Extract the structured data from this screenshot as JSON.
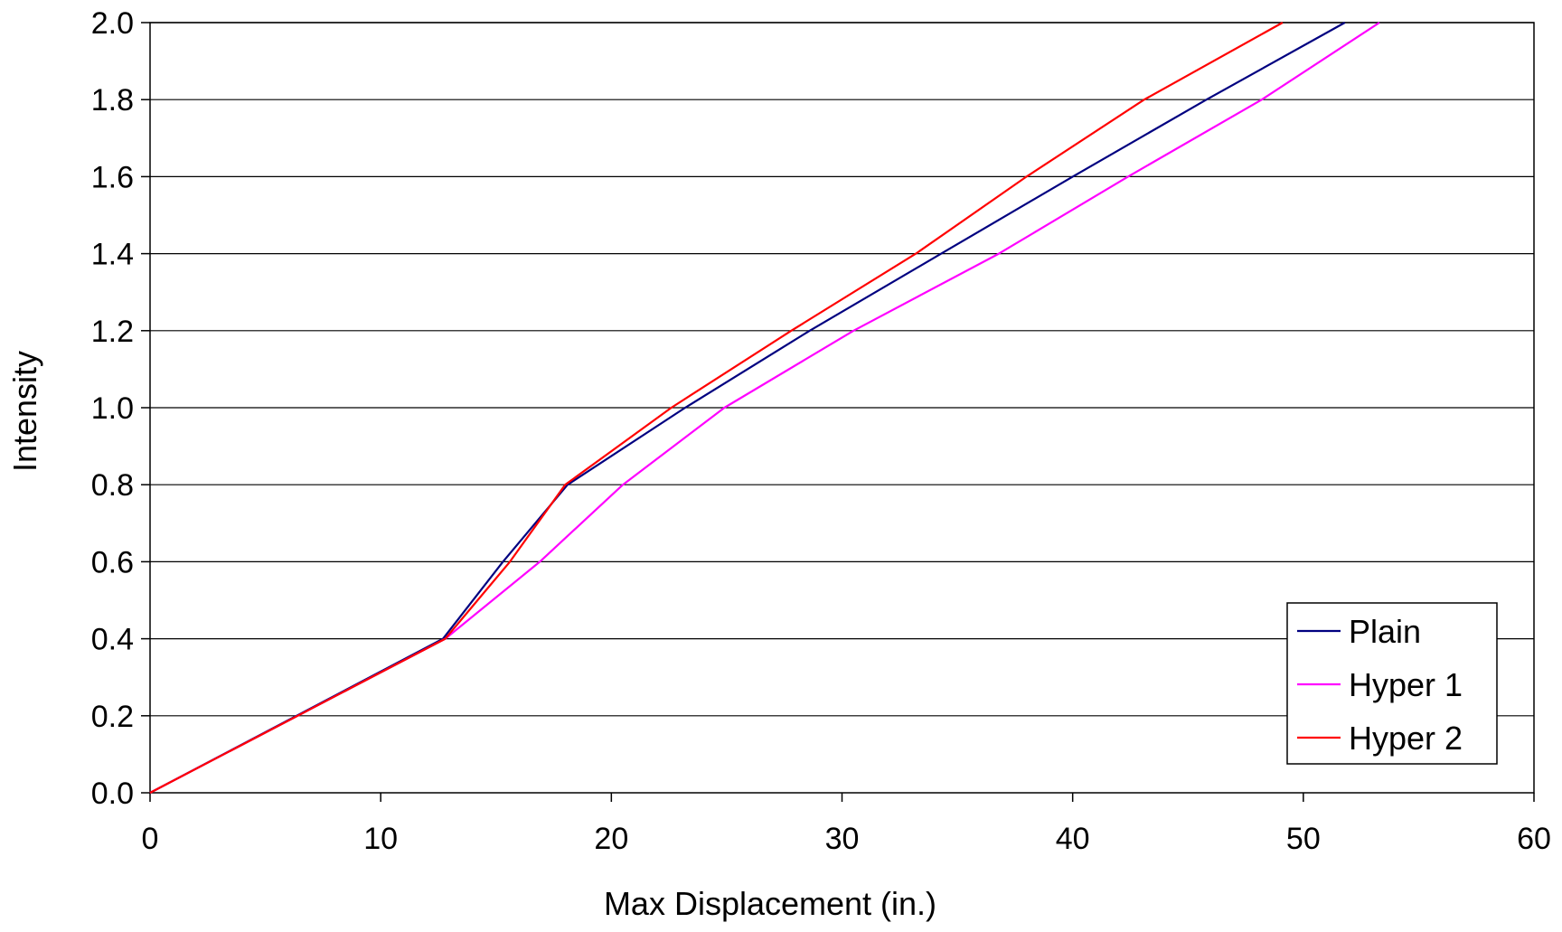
{
  "chart_data": {
    "type": "line",
    "title": "",
    "xlabel": "Max Displacement (in.)",
    "ylabel": "Intensity",
    "xlim": [
      0,
      60
    ],
    "ylim": [
      0,
      2.0
    ],
    "x_ticks": [
      "0",
      "10",
      "20",
      "30",
      "40",
      "50",
      "60"
    ],
    "y_ticks": [
      "0.0",
      "0.2",
      "0.4",
      "0.6",
      "0.8",
      "1.0",
      "1.2",
      "1.4",
      "1.6",
      "1.8",
      "2.0"
    ],
    "grid": "horizontal",
    "legend_position": "bottom-right",
    "series": [
      {
        "name": "Plain",
        "color": "#000080",
        "points": [
          [
            0,
            0
          ],
          [
            12.7,
            0.4
          ],
          [
            15.3,
            0.6
          ],
          [
            18.1,
            0.8
          ],
          [
            23.2,
            1.0
          ],
          [
            28.6,
            1.2
          ],
          [
            34.3,
            1.4
          ],
          [
            40.0,
            1.6
          ],
          [
            45.8,
            1.8
          ],
          [
            51.8,
            2.0
          ]
        ]
      },
      {
        "name": "Hyper 1",
        "color": "#ff00ff",
        "points": [
          [
            0,
            0
          ],
          [
            12.8,
            0.4
          ],
          [
            16.9,
            0.6
          ],
          [
            20.5,
            0.8
          ],
          [
            24.9,
            1.0
          ],
          [
            30.5,
            1.2
          ],
          [
            36.8,
            1.4
          ],
          [
            42.4,
            1.6
          ],
          [
            48.2,
            1.8
          ],
          [
            53.3,
            2.0
          ]
        ]
      },
      {
        "name": "Hyper 2",
        "color": "#ff0000",
        "points": [
          [
            0,
            0
          ],
          [
            12.8,
            0.4
          ],
          [
            15.6,
            0.6
          ],
          [
            18.0,
            0.8
          ],
          [
            22.6,
            1.0
          ],
          [
            27.8,
            1.2
          ],
          [
            33.2,
            1.4
          ],
          [
            38.0,
            1.6
          ],
          [
            43.1,
            1.8
          ],
          [
            49.1,
            2.0
          ]
        ]
      }
    ]
  }
}
